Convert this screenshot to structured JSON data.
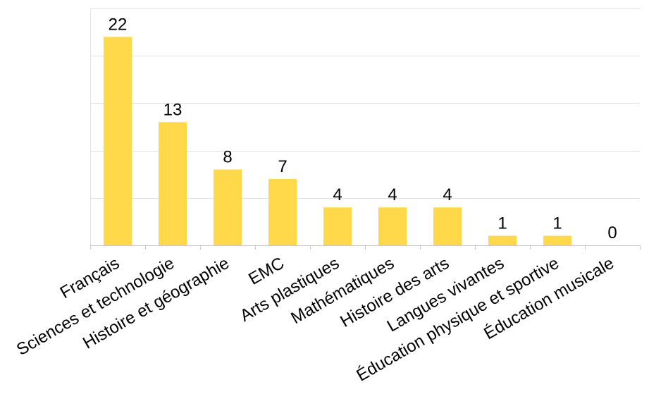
{
  "chart_data": {
    "type": "bar",
    "title": "",
    "xlabel": "",
    "ylabel": "",
    "categories": [
      "Français",
      "Sciences et technologie",
      "Histoire et géographie",
      "EMC",
      "Arts plastiques",
      "Mathématiques",
      "Histoire des arts",
      "Langues vivantes",
      "Éducation physique et sportive",
      "Éducation musicale"
    ],
    "values": [
      22,
      13,
      8,
      7,
      4,
      4,
      4,
      1,
      1,
      0
    ],
    "ylim": [
      0,
      25
    ],
    "grid": true,
    "legend": "none",
    "bar_color": "#ffd94a",
    "data_labels": true
  }
}
